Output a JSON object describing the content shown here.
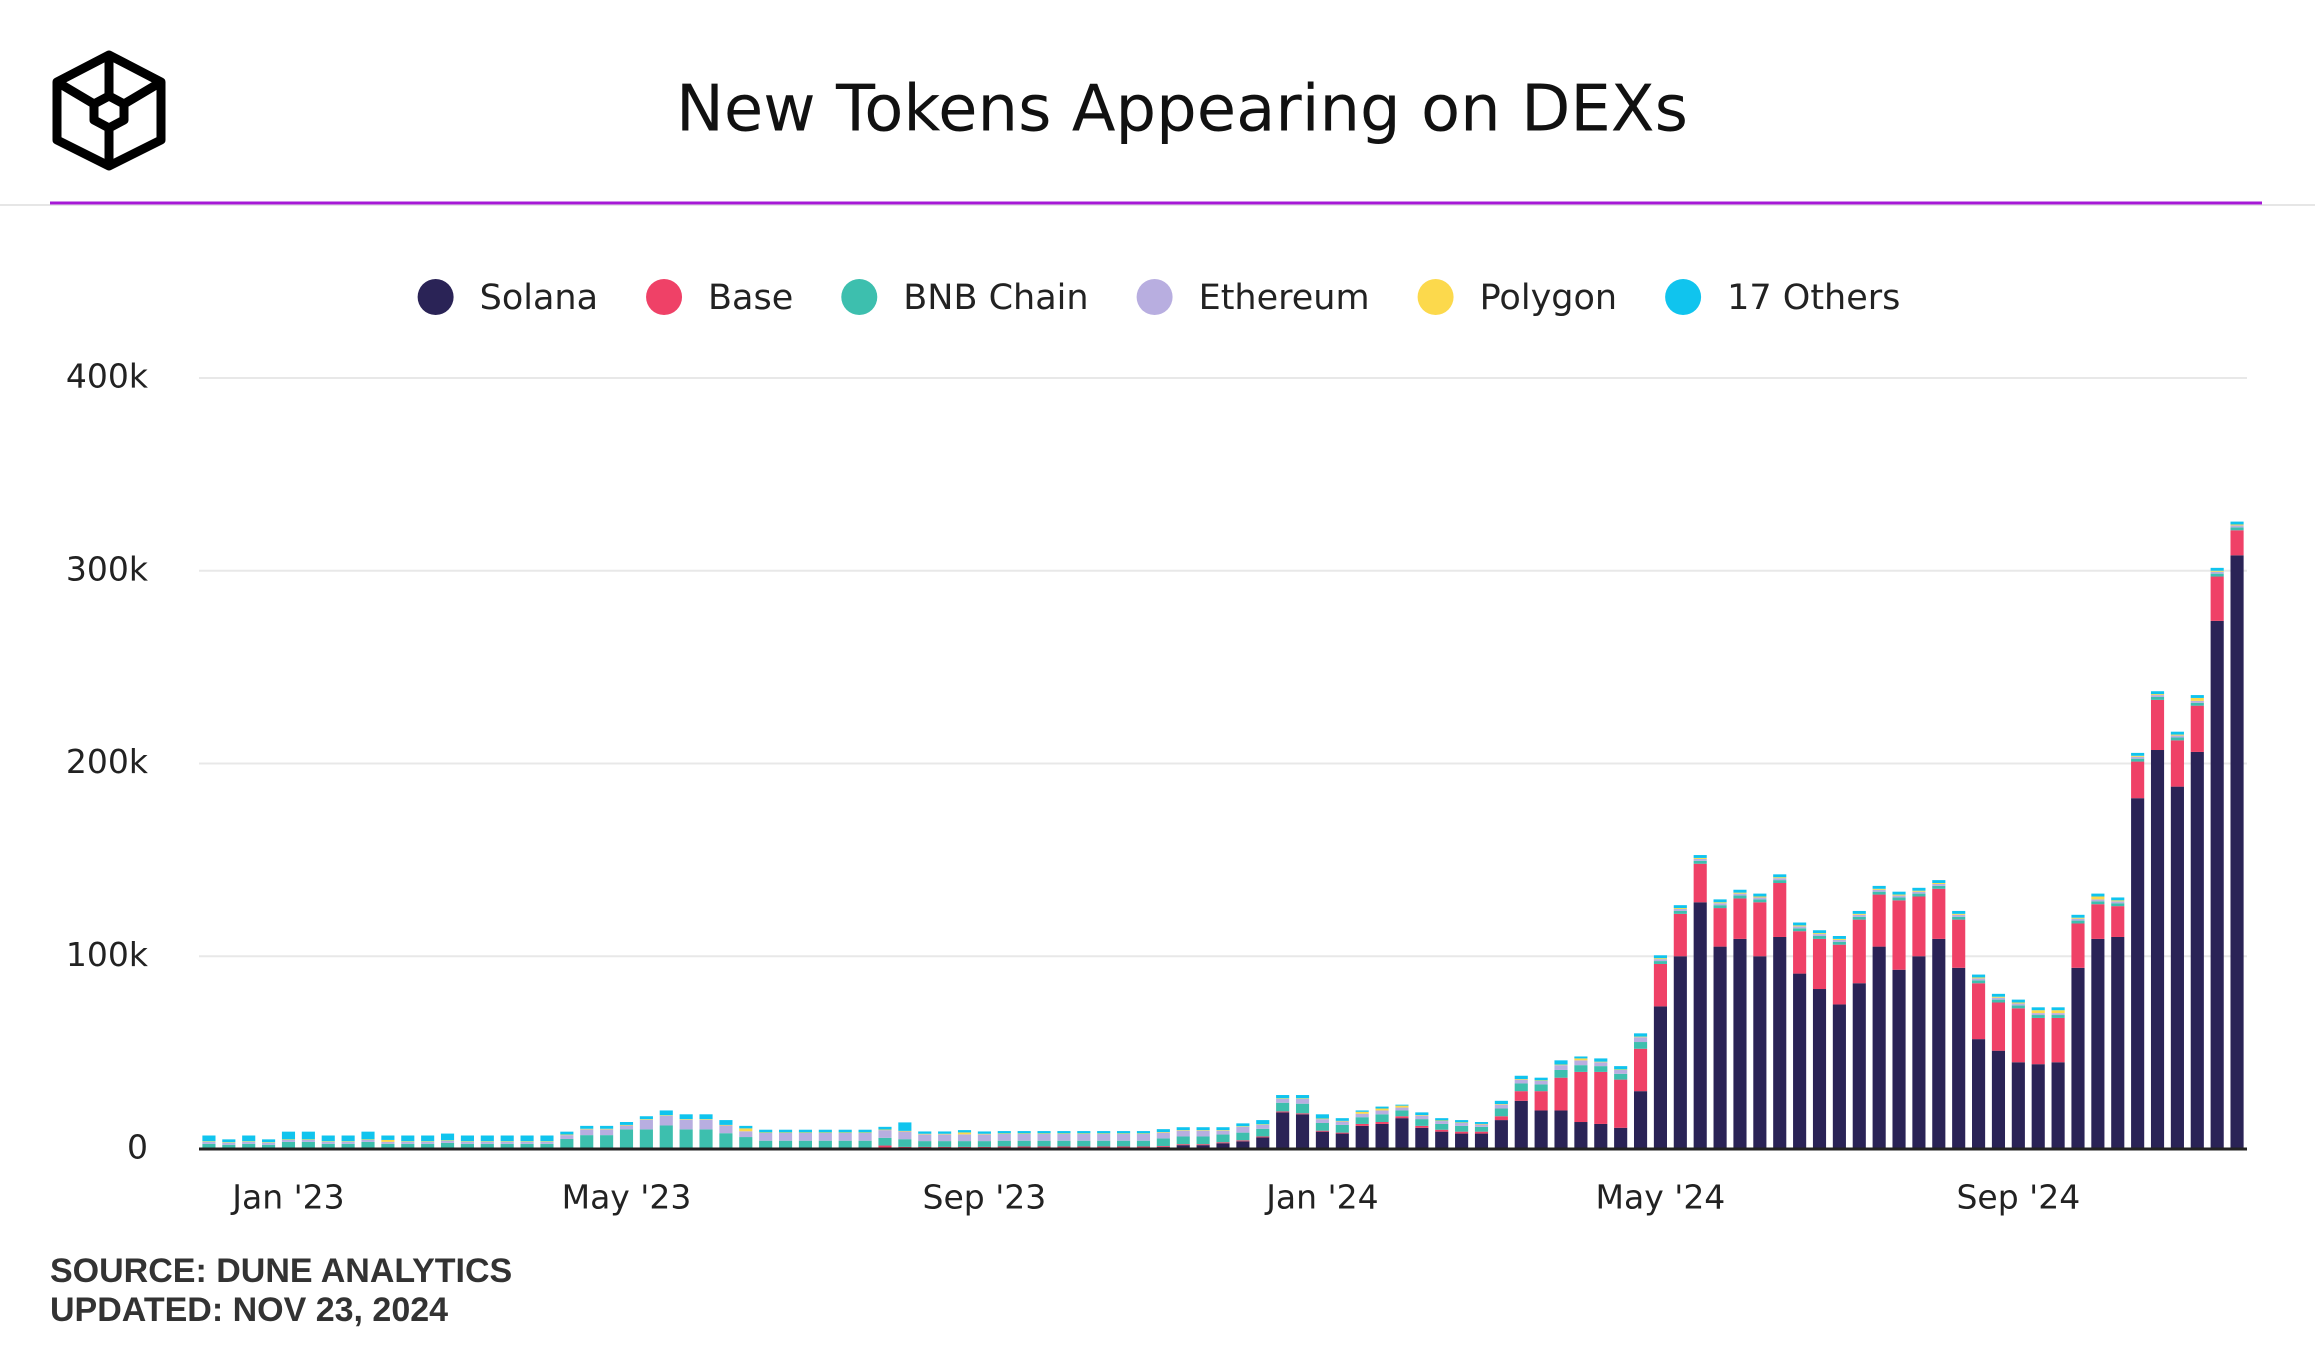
{
  "chart_data": {
    "type": "stacked_bar",
    "title": "New Tokens Appearing on DEXs",
    "source": "SOURCE: DUNE ANALYTICS",
    "updated": "UPDATED: NOV 23, 2024",
    "categories": [
      null,
      null,
      null,
      null,
      "Jan '23",
      null,
      null,
      null,
      null,
      null,
      null,
      null,
      null,
      null,
      null,
      null,
      null,
      null,
      null,
      null,
      null,
      "May '23",
      null,
      null,
      null,
      null,
      null,
      null,
      null,
      null,
      null,
      null,
      null,
      null,
      null,
      null,
      null,
      null,
      null,
      "Sep '23",
      null,
      null,
      null,
      null,
      null,
      null,
      null,
      null,
      null,
      null,
      null,
      null,
      null,
      null,
      null,
      null,
      "Jan '24",
      null,
      null,
      null,
      null,
      null,
      null,
      null,
      null,
      null,
      null,
      null,
      null,
      null,
      null,
      null,
      null,
      "May '24",
      null,
      null,
      null,
      null,
      null,
      null,
      null,
      null,
      null,
      null,
      null,
      null,
      null,
      null,
      null,
      null,
      null,
      "Sep '24",
      null,
      null,
      null,
      null,
      null,
      null,
      null,
      null,
      null,
      null,
      null
    ],
    "series": [
      {
        "name": "Solana",
        "color": "#2a2356",
        "values": [
          200,
          200,
          200,
          200,
          200,
          200,
          200,
          200,
          200,
          200,
          200,
          200,
          200,
          200,
          200,
          200,
          200,
          200,
          200,
          200,
          200,
          200,
          200,
          200,
          200,
          200,
          200,
          200,
          300,
          300,
          300,
          300,
          300,
          300,
          300,
          300,
          300,
          300,
          300,
          300,
          500,
          500,
          500,
          500,
          500,
          500,
          500,
          500,
          1000,
          2000,
          2000,
          3000,
          4000,
          6000,
          19000,
          18000,
          9000,
          8000,
          12000,
          13000,
          16000,
          11000,
          9000,
          8000,
          8000,
          15000,
          25000,
          20000,
          20000,
          14000,
          13000,
          11000,
          30000,
          74000,
          100000,
          128000,
          105000,
          109000,
          100000,
          110000,
          91000,
          83000,
          75000,
          86000,
          105000,
          93000,
          100000,
          109000,
          94000,
          57000,
          51000,
          45000,
          44000,
          45000,
          94000,
          109000,
          110000,
          182000,
          207000,
          188000,
          206000,
          274000,
          308000
        ]
      },
      {
        "name": "Base",
        "color": "#ef4167",
        "values": [
          0,
          0,
          0,
          0,
          0,
          0,
          0,
          0,
          0,
          0,
          0,
          0,
          0,
          0,
          0,
          0,
          0,
          0,
          0,
          0,
          0,
          0,
          0,
          0,
          0,
          0,
          0,
          0,
          0,
          0,
          0,
          0,
          0,
          0,
          1500,
          800,
          800,
          800,
          800,
          800,
          800,
          800,
          800,
          800,
          800,
          800,
          800,
          800,
          500,
          500,
          500,
          500,
          500,
          500,
          500,
          500,
          500,
          500,
          1000,
          1000,
          1000,
          1000,
          1000,
          1000,
          1000,
          2000,
          5000,
          10000,
          17000,
          26000,
          27000,
          25000,
          22000,
          22000,
          22000,
          20000,
          20000,
          21000,
          28000,
          28000,
          22000,
          26000,
          31000,
          33000,
          27000,
          36000,
          31000,
          26000,
          25000,
          29000,
          25000,
          28000,
          24000,
          23000,
          23000,
          18000,
          16000,
          19000,
          26000,
          24000,
          24000,
          23000,
          13000
        ]
      },
      {
        "name": "BNB Chain",
        "color": "#3dbfae",
        "values": [
          2500,
          2000,
          2500,
          2000,
          3500,
          3500,
          2500,
          2500,
          3500,
          2500,
          2500,
          2500,
          3000,
          2500,
          2500,
          2500,
          2500,
          2500,
          5000,
          7000,
          7000,
          10000,
          10000,
          12000,
          10000,
          10000,
          8000,
          6000,
          4000,
          4000,
          4000,
          4000,
          4000,
          4000,
          4000,
          4000,
          3000,
          3000,
          3000,
          3000,
          3000,
          3000,
          3000,
          3000,
          3000,
          3000,
          3000,
          3000,
          4000,
          4000,
          4000,
          4000,
          4000,
          4000,
          4500,
          5000,
          4000,
          4000,
          3500,
          4000,
          3000,
          3500,
          3000,
          3000,
          2500,
          4000,
          4000,
          3500,
          4000,
          3500,
          3000,
          3000,
          3500,
          1500,
          1500,
          1500,
          1500,
          1500,
          1500,
          1500,
          1500,
          1500,
          1500,
          1500,
          1500,
          1500,
          1500,
          1500,
          1500,
          1500,
          1500,
          1500,
          1500,
          1500,
          1500,
          1500,
          1500,
          1500,
          1500,
          1500,
          1500,
          1500,
          1500
        ]
      },
      {
        "name": "Ethereum",
        "color": "#b8aee0",
        "values": [
          1000,
          1000,
          1000,
          1000,
          1000,
          1000,
          1000,
          1000,
          1000,
          1000,
          1000,
          1000,
          1000,
          1000,
          1000,
          1000,
          1000,
          1000,
          2000,
          3000,
          3000,
          2000,
          5000,
          5000,
          5000,
          5000,
          4000,
          3000,
          4000,
          4000,
          4000,
          4000,
          4000,
          4000,
          4000,
          4000,
          3500,
          3500,
          3500,
          3500,
          3500,
          3500,
          3500,
          3500,
          3500,
          3500,
          3500,
          3500,
          3000,
          3000,
          3000,
          2000,
          3000,
          2000,
          2000,
          2500,
          2000,
          1800,
          1800,
          2000,
          1500,
          1800,
          1500,
          1500,
          1200,
          2000,
          2000,
          1800,
          2500,
          2500,
          2000,
          2000,
          2500,
          1000,
          1000,
          1000,
          1000,
          1000,
          1000,
          1000,
          1000,
          1000,
          1000,
          1000,
          1000,
          1000,
          1000,
          1000,
          1000,
          1000,
          1000,
          1000,
          1000,
          1000,
          1000,
          1000,
          1000,
          1000,
          1000,
          1000,
          1000,
          1000,
          1000
        ]
      },
      {
        "name": "Polygon",
        "color": "#fcd94c",
        "values": [
          300,
          300,
          300,
          300,
          300,
          300,
          300,
          300,
          300,
          1000,
          300,
          300,
          300,
          300,
          300,
          300,
          300,
          300,
          300,
          300,
          300,
          300,
          300,
          300,
          300,
          300,
          300,
          1500,
          300,
          300,
          300,
          300,
          300,
          300,
          300,
          300,
          300,
          300,
          1000,
          300,
          300,
          300,
          300,
          300,
          300,
          300,
          300,
          300,
          300,
          300,
          300,
          300,
          300,
          300,
          300,
          300,
          300,
          300,
          1000,
          1000,
          1000,
          300,
          300,
          300,
          300,
          300,
          300,
          300,
          300,
          1000,
          300,
          300,
          300,
          500,
          500,
          500,
          500,
          500,
          500,
          500,
          500,
          500,
          500,
          500,
          500,
          500,
          500,
          500,
          500,
          500,
          500,
          500,
          1500,
          1500,
          500,
          1500,
          500,
          500,
          500,
          500,
          1500,
          500,
          500
        ]
      },
      {
        "name": "17 Others",
        "color": "#10c4ee",
        "values": [
          3000,
          1500,
          3000,
          1500,
          4000,
          4000,
          3000,
          3000,
          4000,
          2300,
          3000,
          3000,
          3500,
          3000,
          3000,
          3000,
          3000,
          3000,
          1500,
          1500,
          1500,
          1500,
          1500,
          2500,
          2500,
          2500,
          2500,
          1300,
          1400,
          1400,
          1400,
          1400,
          1400,
          1400,
          1400,
          4400,
          1200,
          1200,
          1200,
          1200,
          1200,
          1200,
          1200,
          1200,
          1200,
          1200,
          1200,
          1200,
          1500,
          1500,
          1500,
          1500,
          1500,
          2200,
          1700,
          1700,
          2200,
          1400,
          700,
          1000,
          500,
          1400,
          1200,
          1200,
          1000,
          1700,
          1700,
          1400,
          2200,
          1000,
          1700,
          1700,
          1700,
          1500,
          1500,
          1500,
          1500,
          1500,
          1500,
          1500,
          1500,
          1500,
          1500,
          1500,
          1500,
          1500,
          1500,
          1500,
          1500,
          1500,
          1500,
          1500,
          1500,
          1500,
          1500,
          1500,
          1500,
          1500,
          1500,
          1500,
          1500,
          1500,
          1500
        ]
      }
    ],
    "ylim": [
      0,
      400000
    ],
    "yticks": [
      0,
      {
        "value": 100000,
        "label": "100k"
      },
      {
        "value": 200000,
        "label": "200k"
      },
      {
        "value": 300000,
        "label": "300k"
      },
      {
        "value": 400000,
        "label": "400k"
      }
    ],
    "grid": true
  }
}
